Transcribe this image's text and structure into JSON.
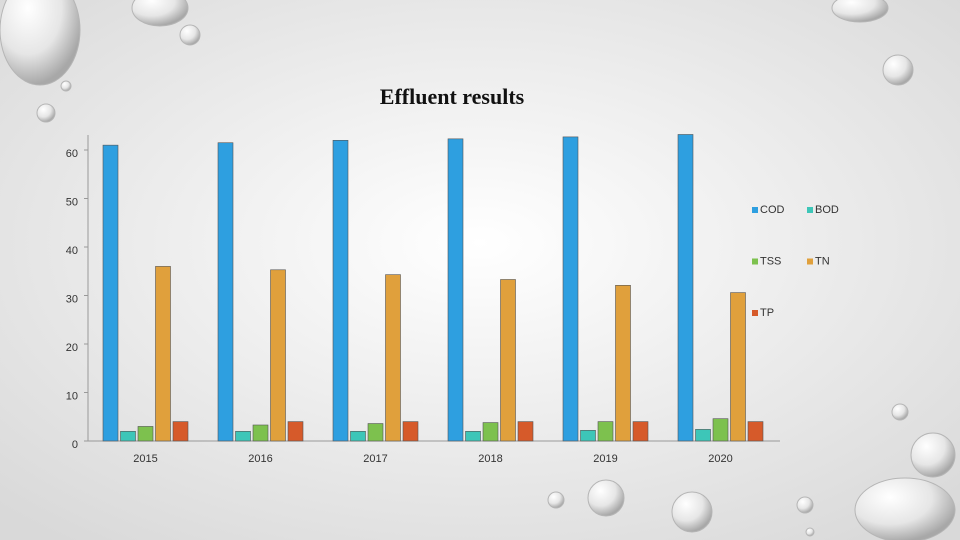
{
  "chart_data": {
    "type": "bar",
    "title": "Effluent results",
    "categories": [
      "2015",
      "2016",
      "2017",
      "2018",
      "2019",
      "2020"
    ],
    "series": [
      {
        "name": "COD",
        "color": "#2e9fe0",
        "values": [
          61,
          61.5,
          62,
          62.3,
          62.7,
          63.2
        ]
      },
      {
        "name": "BOD",
        "color": "#3dc6b8",
        "values": [
          2,
          2,
          2,
          2,
          2.2,
          2.4
        ]
      },
      {
        "name": "TSS",
        "color": "#7dc14e",
        "values": [
          3,
          3.3,
          3.6,
          3.8,
          4,
          4.6
        ]
      },
      {
        "name": "TN",
        "color": "#e0a03c",
        "values": [
          36,
          35.3,
          34.3,
          33.3,
          32.1,
          30.6
        ]
      },
      {
        "name": "TP",
        "color": "#d65a2a",
        "values": [
          4,
          4,
          4,
          4,
          4,
          4
        ]
      }
    ],
    "ylim": [
      0,
      65
    ],
    "yticks": [
      0,
      10,
      20,
      30,
      40,
      50,
      60
    ],
    "grid": false,
    "legend": "right"
  }
}
